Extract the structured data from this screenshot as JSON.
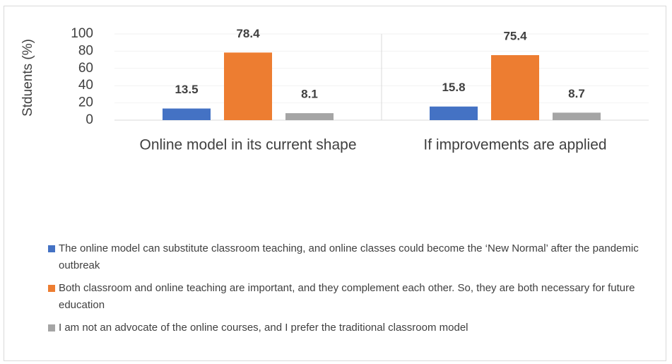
{
  "chart_data": {
    "type": "bar",
    "y_label": "Stduents (%)",
    "categories": [
      "Online model in its current shape",
      "If improvements are applied"
    ],
    "series": [
      {
        "name": "The online model can substitute classroom teaching, and online classes could become the ‘New Normal’ after the pandemic outbreak",
        "color": "#4472c4",
        "values": [
          13.5,
          15.8
        ]
      },
      {
        "name": "Both classroom and online teaching are important, and they complement each other. So, they are both necessary for future education",
        "color": "#ed7d31",
        "values": [
          78.4,
          75.4
        ]
      },
      {
        "name": "I am not an advocate of the online courses, and I prefer the traditional classroom model",
        "color": "#a5a5a5",
        "values": [
          8.1,
          8.7
        ]
      }
    ],
    "ylim": [
      0,
      100
    ],
    "yticks": [
      0,
      20,
      40,
      60,
      80,
      100
    ],
    "grid": true,
    "legend": "bottom"
  }
}
